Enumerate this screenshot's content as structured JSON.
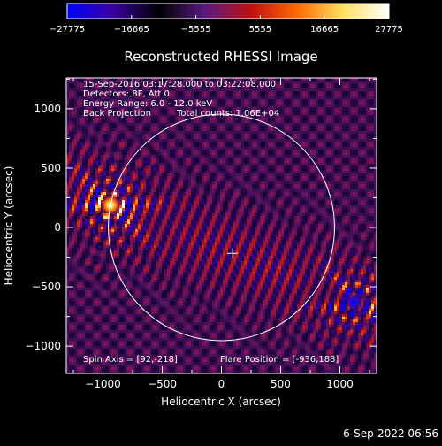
{
  "chart_data": {
    "type": "heatmap",
    "title": "Reconstructed RHESSI Image",
    "xlabel": "Heliocentric X (arcsec)",
    "ylabel": "Heliocentric Y (arcsec)",
    "xlim": [
      -1310,
      1310
    ],
    "ylim": [
      -1230,
      1260
    ],
    "xticks": [
      -1000,
      -500,
      0,
      500,
      1000
    ],
    "xtick_labels": [
      "−1000",
      "−500",
      "0",
      "500",
      "1000"
    ],
    "yticks": [
      -1000,
      -500,
      0,
      500,
      1000
    ],
    "yticks_labels": [
      "−1000",
      "−500",
      "0",
      "500",
      "1000"
    ],
    "colorbar": {
      "min": -27775,
      "max": 27775,
      "ticks": [
        -27775,
        -16665,
        -5555,
        5555,
        16665,
        27775
      ],
      "tick_labels": [
        "−27775",
        "−16665",
        "−5555",
        "5555",
        "16665",
        "27775"
      ],
      "colormap": [
        "#0000ff",
        "#3a00a0",
        "#000000",
        "#5a1a80",
        "#c01010",
        "#ff6a00",
        "#ffe060",
        "#ffffff"
      ]
    },
    "annotations": {
      "line1": "15-Sep-2016 03:17:28.000 to 03:22:08.000",
      "line2": "Detectors: 8F, Att 0",
      "line3": "Energy Range: 6.0 - 12.0 keV",
      "line4a": "Back Projection",
      "line4b": "Total counts: 1.06E+04",
      "spin_axis": "Spin Axis = [92,-218]",
      "flare_position": "Flare Position = [-936,188]"
    },
    "solar_disk": {
      "center": [
        0,
        0
      ],
      "radius": 955
    },
    "spin_axis_marker": [
      92,
      -218
    ],
    "bright_source": [
      -936,
      188
    ],
    "dark_source": [
      1120,
      -630
    ],
    "footer": "6-Sep-2022 06:56"
  }
}
